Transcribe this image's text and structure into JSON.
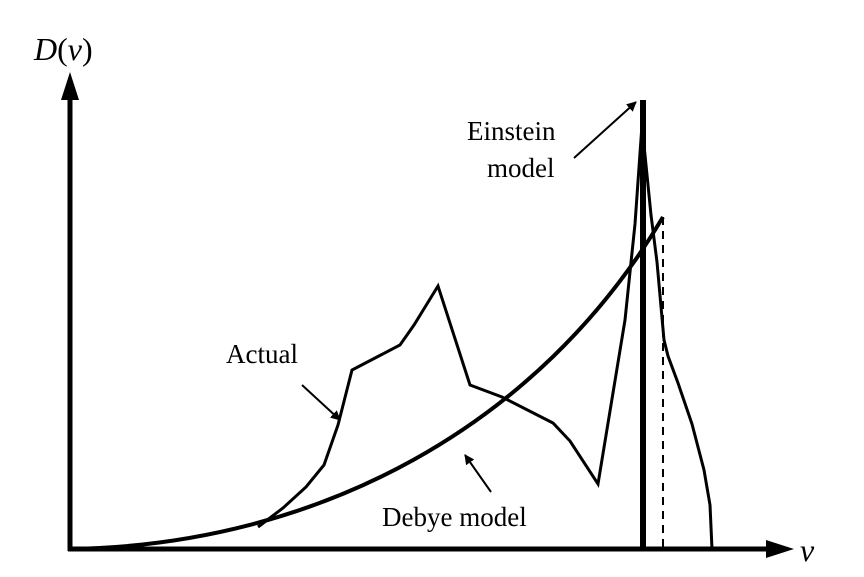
{
  "axes": {
    "y_label_func": "D",
    "y_label_open": "(",
    "y_label_var": "ν",
    "y_label_close": ")",
    "x_label": "ν"
  },
  "labels": {
    "einstein_line1": "Einstein",
    "einstein_line2": "model",
    "actual": "Actual",
    "debye": "Debye model"
  },
  "colors": {
    "ink": "#000000",
    "background": "#ffffff"
  }
}
